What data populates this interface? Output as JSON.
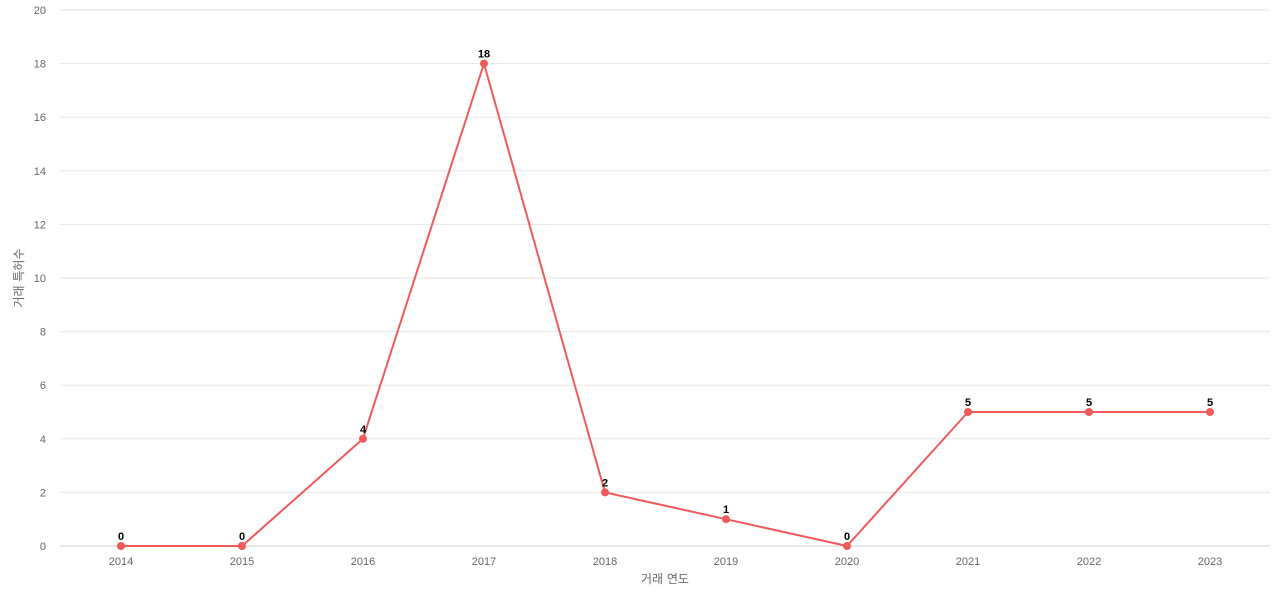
{
  "chart_data": {
    "type": "line",
    "title": "",
    "xlabel": "거래 연도",
    "ylabel": "거래 특허수",
    "categories": [
      "2014",
      "2015",
      "2016",
      "2017",
      "2018",
      "2019",
      "2020",
      "2021",
      "2022",
      "2023"
    ],
    "series": [
      {
        "values": [
          0,
          0,
          4,
          18,
          2,
          1,
          0,
          5,
          5,
          5
        ],
        "color": "#f05a5a"
      }
    ],
    "ylim": [
      0,
      20
    ],
    "yticks": [
      0,
      2,
      4,
      6,
      8,
      10,
      12,
      14,
      16,
      18,
      20
    ],
    "grid": true,
    "legend": "none",
    "data_labels": true
  }
}
